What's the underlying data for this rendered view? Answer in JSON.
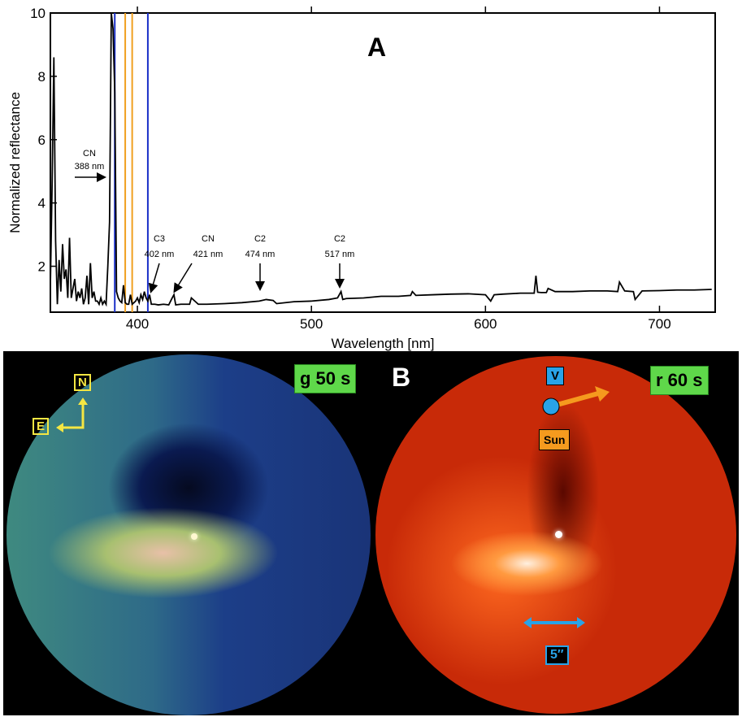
{
  "chart_data": {
    "type": "line",
    "panel_label": "A",
    "xlabel": "Wavelength [nm]",
    "ylabel": "Normalized reflectance",
    "xlim": [
      350,
      732
    ],
    "ylim": [
      0.55,
      10
    ],
    "xticks": [
      400,
      500,
      600,
      700
    ],
    "yticks": [
      2,
      4,
      6,
      8,
      10
    ],
    "grid": false,
    "series": [
      {
        "color": "#000000",
        "x": [
          350,
          351,
          352,
          353,
          354,
          355,
          356,
          357,
          358,
          359,
          360,
          361,
          362,
          363,
          364,
          365,
          366,
          367,
          368,
          369,
          370,
          371,
          372,
          373,
          374,
          375,
          376,
          377,
          378,
          379,
          380,
          381,
          382,
          383,
          384,
          385,
          386,
          387,
          388,
          389,
          390,
          391,
          392,
          393,
          394,
          395,
          396,
          397,
          398,
          399,
          400,
          401,
          402,
          403,
          404,
          405,
          406,
          407,
          408,
          410,
          412,
          415,
          418,
          420,
          421,
          422,
          425,
          430,
          431,
          435,
          440,
          450,
          460,
          470,
          474,
          478,
          480,
          490,
          500,
          510,
          515,
          517,
          518,
          520,
          530,
          540,
          550,
          557,
          558,
          560,
          570,
          580,
          590,
          600,
          603,
          605,
          610,
          620,
          628,
          629,
          630,
          632,
          635,
          636,
          640,
          650,
          660,
          670,
          676,
          677,
          680,
          685,
          686,
          690,
          700,
          710,
          720,
          730
        ],
        "y": [
          1.4,
          4.6,
          8.6,
          2.8,
          0.8,
          2.2,
          1.2,
          2.7,
          1.6,
          1.9,
          1.0,
          2.9,
          1.0,
          1.3,
          1.6,
          0.9,
          1.2,
          1.0,
          1.3,
          0.8,
          1.0,
          1.7,
          0.8,
          2.1,
          1.0,
          1.2,
          0.9,
          0.9,
          0.8,
          1.0,
          0.8,
          0.9,
          0.8,
          2.0,
          3.4,
          10,
          9.5,
          7.5,
          1.2,
          1.0,
          0.9,
          0.85,
          1.4,
          0.85,
          0.8,
          0.8,
          1.1,
          0.8,
          0.85,
          0.9,
          1.0,
          0.85,
          1.1,
          0.95,
          1.2,
          1.0,
          0.9,
          1.1,
          0.8,
          0.8,
          0.78,
          0.8,
          0.78,
          1.0,
          1.1,
          0.78,
          0.8,
          0.8,
          1.0,
          0.8,
          0.8,
          0.82,
          0.85,
          0.9,
          0.95,
          0.92,
          0.82,
          0.88,
          0.9,
          0.95,
          1.0,
          1.2,
          0.95,
          0.98,
          1.0,
          1.05,
          1.05,
          1.08,
          1.2,
          1.08,
          1.1,
          1.12,
          1.13,
          1.1,
          0.9,
          1.1,
          1.12,
          1.15,
          1.15,
          1.7,
          1.18,
          1.17,
          1.17,
          1.3,
          1.2,
          1.2,
          1.22,
          1.22,
          1.2,
          1.5,
          1.22,
          1.2,
          0.95,
          1.22,
          1.23,
          1.25,
          1.25,
          1.27
        ]
      }
    ],
    "vlines": [
      {
        "x": 387,
        "color": "#1a2fc8"
      },
      {
        "x": 393,
        "color": "#f0a020"
      },
      {
        "x": 397,
        "color": "#f0a020"
      },
      {
        "x": 406,
        "color": "#1a2fc8"
      }
    ],
    "annotations": [
      {
        "species": "CN",
        "wl": "388 nm"
      },
      {
        "species": "C3",
        "wl": "402 nm"
      },
      {
        "species": "CN",
        "wl": "421 nm"
      },
      {
        "species": "C2",
        "wl": "474 nm"
      },
      {
        "species": "C2",
        "wl": "517 nm"
      }
    ]
  },
  "panel_b": {
    "label": "B",
    "left_exposure": "g 50 s",
    "right_exposure": "r 60 s",
    "compass_n": "N",
    "compass_e": "E",
    "velocity": "V",
    "sun": "Sun",
    "scale": "5″",
    "colors": {
      "green_box": "#5fd84a",
      "compass": "#f5e642",
      "velocity_box": "#29a3e8",
      "sun_box": "#f59a1e"
    }
  }
}
